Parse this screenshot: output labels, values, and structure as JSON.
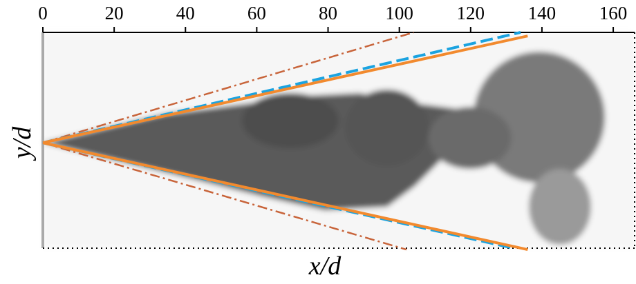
{
  "chart_data": {
    "type": "line",
    "xlabel": "x/d",
    "ylabel": "y/d",
    "xlim": [
      0,
      166
    ],
    "xticks": [
      0,
      20,
      40,
      60,
      80,
      100,
      120,
      140,
      160
    ],
    "ylim": [
      -29.6,
      31
    ],
    "grid": false,
    "series": [
      {
        "color": "#c8643a",
        "style": "dashdot",
        "x": [
          0,
          104
        ],
        "values": [
          0,
          31
        ]
      },
      {
        "color": "#c8643a",
        "style": "dashdot",
        "x": [
          0,
          102
        ],
        "values": [
          0,
          -30
        ]
      },
      {
        "color": "#1ba3e0",
        "style": "dashed",
        "x": [
          0,
          134
        ],
        "values": [
          0,
          31
        ]
      },
      {
        "color": "#1ba3e0",
        "style": "dashed",
        "x": [
          0,
          132
        ],
        "values": [
          0,
          -29.6
        ]
      },
      {
        "color": "#f28a2e",
        "style": "solid",
        "x": [
          0,
          136
        ],
        "values": [
          0,
          30
        ]
      },
      {
        "color": "#f28a2e",
        "style": "solid",
        "x": [
          0,
          136
        ],
        "values": [
          0,
          -30
        ]
      }
    ]
  }
}
